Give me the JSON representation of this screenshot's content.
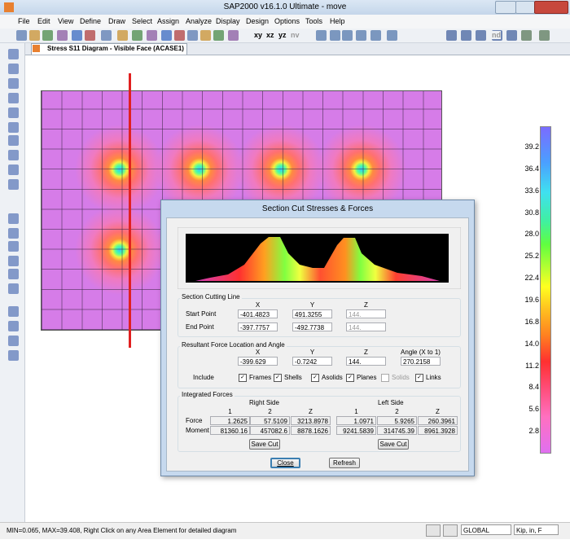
{
  "window": {
    "title": "SAP2000 v16.1.0 Ultimate - move"
  },
  "menu": [
    "File",
    "Edit",
    "View",
    "Define",
    "Draw",
    "Select",
    "Assign",
    "Analyze",
    "Display",
    "Design",
    "Options",
    "Tools",
    "Help"
  ],
  "toolbar": {
    "view_buttons": [
      "xy",
      "xz",
      "yz",
      "nv"
    ],
    "nd": "nd"
  },
  "tab": {
    "title": "Stress S11 Diagram - Visible Face  (ACASE1)"
  },
  "legend": {
    "labels": [
      "39.2",
      "36.4",
      "33.6",
      "30.8",
      "28.0",
      "25.2",
      "22.4",
      "19.6",
      "16.8",
      "14.0",
      "11.2",
      "8.4",
      "5.6",
      "2.8"
    ]
  },
  "dialog": {
    "title": "Section Cut Stresses & Forces",
    "section_cutting_line": {
      "title": "Section Cutting Line",
      "headers": [
        "X",
        "Y",
        "Z"
      ],
      "rows": [
        {
          "label": "Start Point",
          "values": [
            "-401.4823",
            "491.3255",
            "144."
          ]
        },
        {
          "label": "End Point",
          "values": [
            "-397.7757",
            "-492.7738",
            "144."
          ]
        }
      ]
    },
    "resultant": {
      "title": "Resultant Force Location and Angle",
      "headers": [
        "X",
        "Y",
        "Z",
        "Angle (X to 1)"
      ],
      "values": [
        "-399.629",
        "-0.7242",
        "144.",
        "270.2158"
      ],
      "include_label": "Include",
      "include": [
        {
          "label": "Frames",
          "checked": true,
          "enabled": true
        },
        {
          "label": "Shells",
          "checked": true,
          "enabled": true
        },
        {
          "label": "Asolids",
          "checked": true,
          "enabled": true
        },
        {
          "label": "Planes",
          "checked": true,
          "enabled": true
        },
        {
          "label": "Solids",
          "checked": false,
          "enabled": false
        },
        {
          "label": "Links",
          "checked": true,
          "enabled": true
        }
      ]
    },
    "integrated": {
      "title": "Integrated Forces",
      "right_side": "Right Side",
      "left_side": "Left Side",
      "headers": [
        "1",
        "2",
        "Z",
        "1",
        "2",
        "Z"
      ],
      "rows": [
        {
          "label": "Force",
          "values": [
            "1.2625",
            "57.5109",
            "3213.8978",
            "1.0971",
            "5.9265",
            "260.3961"
          ]
        },
        {
          "label": "Moment",
          "values": [
            "81360.16",
            "457082.6",
            "8878.1626",
            "9241.5839",
            "314745.39",
            "8961.3928"
          ]
        }
      ],
      "save_cut": "Save Cut"
    },
    "buttons": {
      "close": "Close",
      "refresh": "Refresh"
    }
  },
  "status": {
    "text": "MIN=0.065, MAX=39.408, Right Click on any Area Element for detailed diagram",
    "coord_system": "GLOBAL",
    "units": "Kip, in, F"
  }
}
